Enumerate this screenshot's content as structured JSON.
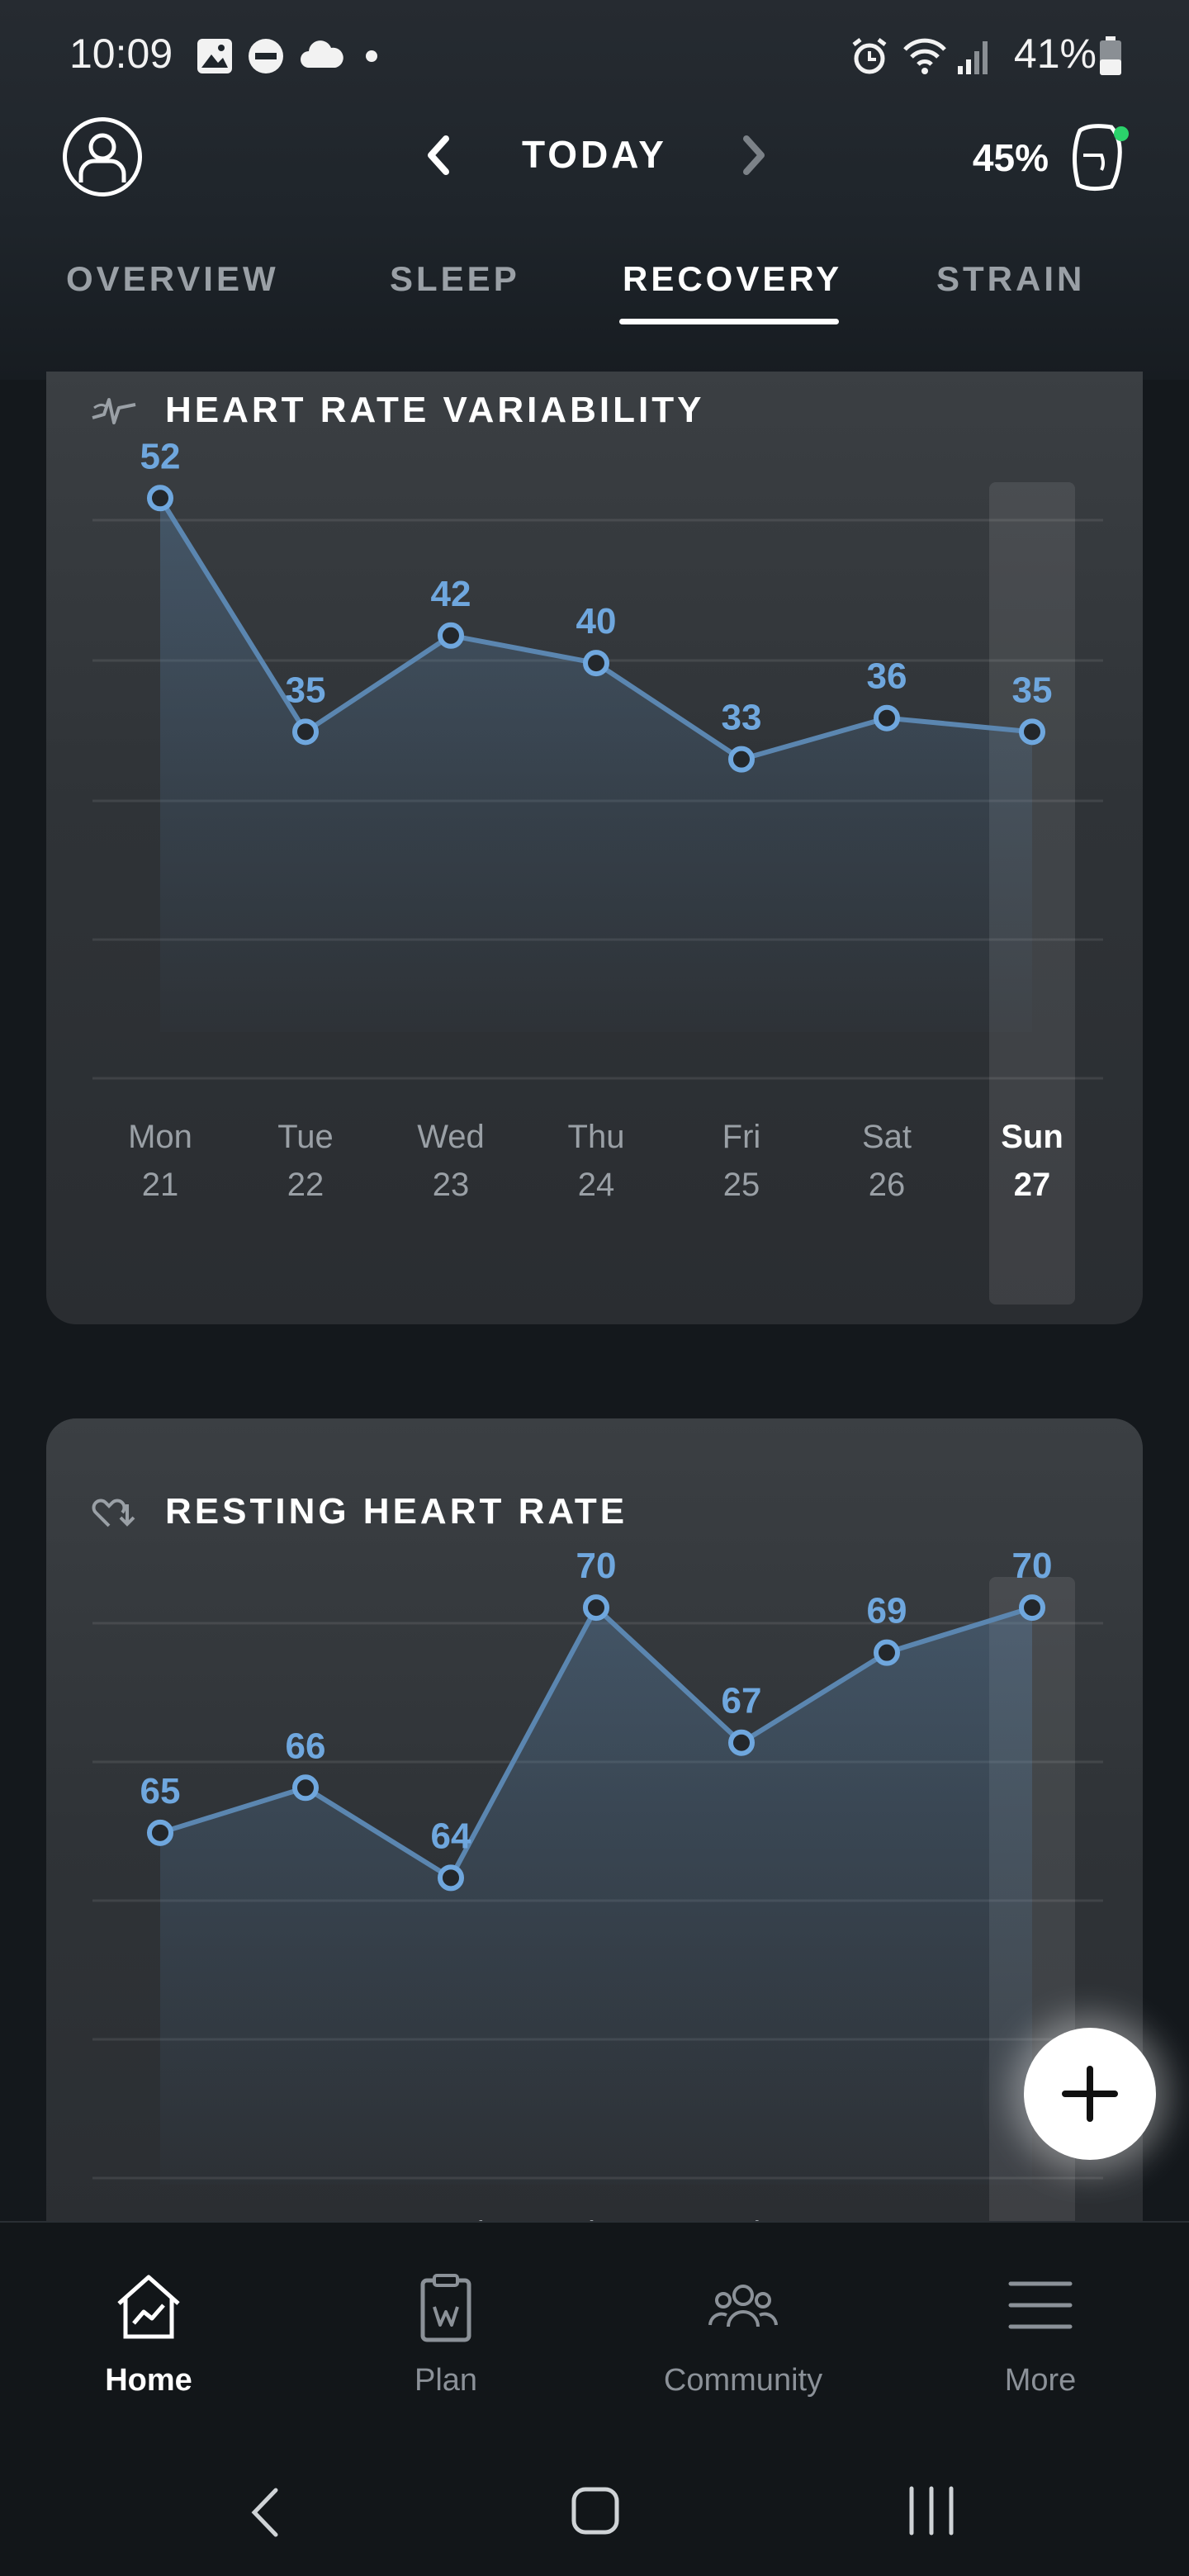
{
  "status_bar": {
    "time": "10:09",
    "battery_percent": "41%",
    "icons": [
      "image-icon",
      "do-not-disturb-icon",
      "cloud-icon",
      "dot-icon",
      "alarm-icon",
      "wifi-icon",
      "signal-icon",
      "battery-icon"
    ]
  },
  "header": {
    "date_title": "TODAY",
    "strap_battery": "45%",
    "strap_status_color": "#2bd36b"
  },
  "tabs": [
    {
      "label": "OVERVIEW",
      "active": false
    },
    {
      "label": "SLEEP",
      "active": false
    },
    {
      "label": "RECOVERY",
      "active": true
    },
    {
      "label": "STRAIN",
      "active": false
    }
  ],
  "hrv_card": {
    "title": "HEART RATE VARIABILITY",
    "icon": "heart-rate-variability-icon"
  },
  "rhr_card": {
    "title": "RESTING HEART RATE",
    "icon": "resting-heart-icon"
  },
  "chart_data": [
    {
      "type": "line",
      "title": "HEART RATE VARIABILITY",
      "categories": [
        "Mon 21",
        "Tue 22",
        "Wed 23",
        "Thu 24",
        "Fri 25",
        "Sat 26",
        "Sun 27"
      ],
      "day_names": [
        "Mon",
        "Tue",
        "Wed",
        "Thu",
        "Fri",
        "Sat",
        "Sun"
      ],
      "day_numbers": [
        "21",
        "22",
        "23",
        "24",
        "25",
        "26",
        "27"
      ],
      "values": [
        52,
        35,
        42,
        40,
        33,
        36,
        35
      ],
      "selected_index": 6,
      "ylim": [
        14,
        54
      ],
      "grid": true,
      "line_color": "#6fa7de"
    },
    {
      "type": "line",
      "title": "RESTING HEART RATE",
      "categories": [
        "Mon",
        "Tue",
        "Wed",
        "Thu",
        "Fri",
        "Sat",
        "Sun"
      ],
      "values": [
        65,
        66,
        64,
        70,
        67,
        69,
        70
      ],
      "selected_index": 6,
      "ylim": [
        61,
        72
      ],
      "grid": true,
      "line_color": "#6fa7de"
    }
  ],
  "fab": {
    "icon": "plus-icon"
  },
  "bottom_nav": [
    {
      "label": "Home",
      "icon": "home-chart-icon",
      "active": true
    },
    {
      "label": "Plan",
      "icon": "clipboard-icon",
      "active": false
    },
    {
      "label": "Community",
      "icon": "community-icon",
      "active": false
    },
    {
      "label": "More",
      "icon": "menu-icon",
      "active": false
    }
  ],
  "system_nav": {
    "icons": [
      "back-icon",
      "home-icon",
      "recents-icon"
    ]
  }
}
